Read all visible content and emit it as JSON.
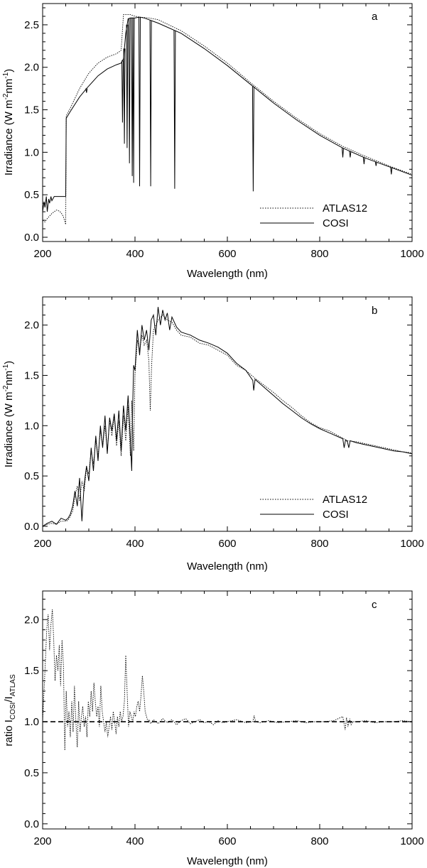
{
  "chart_data": [
    {
      "type": "line",
      "panel_letter": "a",
      "xlabel": "Wavelength (nm)",
      "ylabel": {
        "main": "Irradiance (W m",
        "sup1": "-2",
        "mid": "nm",
        "sup2": "-1",
        "tail": ")"
      },
      "xlim": [
        200,
        1000
      ],
      "ylim": [
        -0.05,
        2.75
      ],
      "xticks": [
        200,
        400,
        600,
        800,
        1000
      ],
      "yticks": [
        0.0,
        0.5,
        1.0,
        1.5,
        2.0,
        2.5
      ],
      "yticklabels": [
        "0.0",
        "0.5",
        "1.0",
        "1.5",
        "2.0",
        "2.5"
      ],
      "legend_position": "bottom-right",
      "series": [
        {
          "name": "ATLAS12",
          "style": "dotted",
          "x": [
            200,
            205,
            210,
            215,
            220,
            225,
            230,
            235,
            240,
            245,
            250,
            251,
            260,
            280,
            300,
            320,
            340,
            360,
            365,
            370,
            375,
            380,
            390,
            400,
            410,
            430,
            450,
            500,
            550,
            600,
            650,
            700,
            750,
            800,
            850,
            900,
            950,
            1000
          ],
          "y": [
            0.2,
            0.18,
            0.22,
            0.25,
            0.28,
            0.3,
            0.32,
            0.31,
            0.29,
            0.24,
            0.15,
            1.43,
            1.52,
            1.75,
            1.93,
            2.05,
            2.12,
            2.16,
            2.18,
            2.2,
            2.62,
            2.62,
            2.62,
            2.6,
            2.59,
            2.58,
            2.56,
            2.43,
            2.25,
            2.05,
            1.82,
            1.6,
            1.4,
            1.22,
            1.07,
            0.95,
            0.84,
            0.74
          ]
        },
        {
          "name": "COSI",
          "style": "solid",
          "x": [
            200,
            203,
            205,
            208,
            210,
            213,
            215,
            218,
            220,
            225,
            230,
            240,
            249,
            250,
            251,
            260,
            280,
            295,
            300,
            320,
            340,
            360,
            370,
            375,
            380,
            385,
            390,
            395,
            400,
            410,
            420,
            430,
            440,
            450,
            500,
            550,
            600,
            650,
            700,
            750,
            800,
            850,
            900,
            950,
            1000
          ],
          "y": [
            0.3,
            0.42,
            0.35,
            0.48,
            0.3,
            0.45,
            0.4,
            0.48,
            0.43,
            0.48,
            0.48,
            0.48,
            0.48,
            0.48,
            1.4,
            1.48,
            1.65,
            1.75,
            1.78,
            1.9,
            1.98,
            2.03,
            2.05,
            2.1,
            2.4,
            2.57,
            2.58,
            2.58,
            2.58,
            2.59,
            2.58,
            2.56,
            2.54,
            2.52,
            2.4,
            2.22,
            2.02,
            1.8,
            1.58,
            1.38,
            1.2,
            1.05,
            0.93,
            0.83,
            0.73
          ]
        }
      ],
      "absorption_lines": [
        {
          "x": 295,
          "y": 1.7
        },
        {
          "x": 373,
          "y": 1.35
        },
        {
          "x": 377,
          "y": 1.1
        },
        {
          "x": 383,
          "y": 1.05
        },
        {
          "x": 388,
          "y": 0.87
        },
        {
          "x": 394,
          "y": 0.72
        },
        {
          "x": 397,
          "y": 0.64
        },
        {
          "x": 410,
          "y": 0.6
        },
        {
          "x": 434,
          "y": 0.6
        },
        {
          "x": 486,
          "y": 0.57
        },
        {
          "x": 656,
          "y": 0.54
        },
        {
          "x": 850,
          "y": 0.94
        },
        {
          "x": 866,
          "y": 0.94
        },
        {
          "x": 896,
          "y": 0.86
        },
        {
          "x": 922,
          "y": 0.84
        },
        {
          "x": 955,
          "y": 0.74
        }
      ]
    },
    {
      "type": "line",
      "panel_letter": "b",
      "xlabel": "Wavelength (nm)",
      "ylabel": {
        "main": "Irradiance (W m",
        "sup1": "-2",
        "mid": "nm",
        "sup2": "-1",
        "tail": ")"
      },
      "xlim": [
        200,
        1000
      ],
      "ylim": [
        -0.05,
        2.28
      ],
      "xticks": [
        200,
        400,
        600,
        800,
        1000
      ],
      "yticks": [
        0.0,
        0.5,
        1.0,
        1.5,
        2.0
      ],
      "yticklabels": [
        "0.0",
        "0.5",
        "1.0",
        "1.5",
        "2.0"
      ],
      "legend_position": "bottom-right",
      "series": [
        {
          "name": "ATLAS12",
          "style": "dotted",
          "x": [
            200,
            210,
            220,
            230,
            240,
            250,
            255,
            260,
            265,
            270,
            275,
            280,
            285,
            290,
            295,
            300,
            305,
            310,
            315,
            320,
            325,
            330,
            335,
            340,
            345,
            350,
            355,
            360,
            365,
            370,
            375,
            380,
            385,
            390,
            393,
            397,
            400,
            405,
            410,
            415,
            420,
            425,
            430,
            433,
            436,
            440,
            445,
            450,
            460,
            470,
            480,
            490,
            500,
            520,
            540,
            560,
            580,
            600,
            620,
            640,
            660,
            680,
            700,
            720,
            740,
            760,
            780,
            800,
            820,
            840,
            860,
            880,
            900,
            920,
            940,
            960,
            980,
            1000
          ],
          "y": [
            0.0,
            0.02,
            0.03,
            0.02,
            0.05,
            0.05,
            0.06,
            0.1,
            0.15,
            0.3,
            0.4,
            0.25,
            0.45,
            0.35,
            0.58,
            0.52,
            0.75,
            0.62,
            0.85,
            0.7,
            0.95,
            0.8,
            1.0,
            0.75,
            1.05,
            0.9,
            1.1,
            0.8,
            1.05,
            0.7,
            1.1,
            0.85,
            1.2,
            0.7,
            1.25,
            0.75,
            1.5,
            1.85,
            1.75,
            1.9,
            1.8,
            1.85,
            1.65,
            1.15,
            1.6,
            1.95,
            2.0,
            2.05,
            2.1,
            2.05,
            2.03,
            1.95,
            1.9,
            1.88,
            1.82,
            1.8,
            1.75,
            1.7,
            1.6,
            1.55,
            1.47,
            1.4,
            1.33,
            1.25,
            1.18,
            1.1,
            1.03,
            0.98,
            0.95,
            0.9,
            0.85,
            0.84,
            0.82,
            0.8,
            0.78,
            0.76,
            0.74,
            0.73
          ]
        },
        {
          "name": "COSI",
          "style": "solid",
          "x": [
            200,
            210,
            220,
            230,
            240,
            250,
            255,
            260,
            265,
            270,
            275,
            280,
            285,
            290,
            295,
            300,
            305,
            310,
            315,
            320,
            325,
            330,
            335,
            340,
            345,
            350,
            355,
            360,
            365,
            370,
            375,
            380,
            385,
            390,
            393,
            395,
            397,
            400,
            405,
            410,
            415,
            420,
            425,
            430,
            435,
            440,
            445,
            450,
            455,
            460,
            465,
            470,
            475,
            480,
            490,
            500,
            520,
            540,
            560,
            580,
            600,
            620,
            640,
            655,
            657,
            660,
            680,
            700,
            720,
            740,
            760,
            780,
            800,
            820,
            840,
            850,
            853,
            856,
            860,
            863,
            866,
            880,
            900,
            920,
            940,
            960,
            980,
            1000
          ],
          "y": [
            0.0,
            0.03,
            0.05,
            0.02,
            0.08,
            0.06,
            0.08,
            0.12,
            0.2,
            0.35,
            0.2,
            0.48,
            0.05,
            0.42,
            0.6,
            0.45,
            0.78,
            0.55,
            0.9,
            0.65,
            1.0,
            0.78,
            1.1,
            0.72,
            1.08,
            0.95,
            1.12,
            0.85,
            1.15,
            0.75,
            1.2,
            0.95,
            1.3,
            0.85,
            0.55,
            1.2,
            1.6,
            1.55,
            1.95,
            1.7,
            2.0,
            1.85,
            1.95,
            1.75,
            2.05,
            2.1,
            1.9,
            2.18,
            2.0,
            2.15,
            2.05,
            2.12,
            1.95,
            2.08,
            1.98,
            1.93,
            1.9,
            1.85,
            1.82,
            1.78,
            1.72,
            1.62,
            1.55,
            1.45,
            1.35,
            1.46,
            1.38,
            1.3,
            1.22,
            1.15,
            1.08,
            1.02,
            0.97,
            0.93,
            0.89,
            0.87,
            0.78,
            0.86,
            0.84,
            0.78,
            0.85,
            0.83,
            0.81,
            0.79,
            0.77,
            0.75,
            0.74,
            0.72
          ]
        }
      ]
    },
    {
      "type": "line",
      "panel_letter": "c",
      "xlabel": "Wavelength (nm)",
      "ylabel": {
        "main": "ratio I",
        "sub1": "COSI",
        "mid": "/I",
        "sub2": "ATLAS"
      },
      "xlim": [
        200,
        1000
      ],
      "ylim": [
        -0.05,
        2.28
      ],
      "xticks": [
        200,
        400,
        600,
        800,
        1000
      ],
      "yticks": [
        0.0,
        0.5,
        1.0,
        1.5,
        2.0
      ],
      "yticklabels": [
        "0.0",
        "0.5",
        "1.0",
        "1.5",
        "2.0"
      ],
      "series": [
        {
          "name": "",
          "style": "dotted",
          "x": [
            200,
            203,
            206,
            209,
            212,
            215,
            218,
            221,
            224,
            227,
            230,
            233,
            236,
            239,
            242,
            245,
            248,
            251,
            254,
            257,
            260,
            263,
            266,
            269,
            272,
            275,
            278,
            281,
            284,
            287,
            290,
            293,
            296,
            299,
            302,
            305,
            308,
            311,
            314,
            317,
            320,
            323,
            326,
            329,
            332,
            335,
            338,
            341,
            344,
            347,
            350,
            353,
            356,
            359,
            362,
            365,
            368,
            371,
            374,
            377,
            380,
            383,
            386,
            389,
            392,
            395,
            398,
            401,
            404,
            407,
            410,
            413,
            416,
            419,
            422,
            425,
            428,
            431,
            434,
            437,
            440,
            445,
            450,
            460,
            470,
            480,
            490,
            500,
            510,
            520,
            530,
            540,
            550,
            560,
            570,
            580,
            590,
            600,
            620,
            640,
            655,
            658,
            661,
            670,
            690,
            710,
            730,
            750,
            770,
            790,
            810,
            830,
            850,
            855,
            858,
            861,
            865,
            868,
            872,
            880,
            900,
            920,
            940,
            960,
            980,
            1000
          ],
          "y": [
            1.0,
            1.3,
            1.6,
            1.9,
            2.05,
            1.7,
            1.95,
            2.1,
            1.8,
            1.4,
            1.65,
            1.5,
            1.75,
            1.35,
            1.8,
            1.55,
            0.72,
            1.3,
            0.95,
            1.1,
            0.85,
            1.2,
            0.9,
            1.35,
            1.0,
            0.75,
            1.2,
            0.9,
            1.05,
            1.15,
            0.95,
            1.05,
            0.85,
            1.2,
            1.05,
            1.3,
            1.1,
            1.38,
            1.2,
            1.05,
            1.15,
            0.95,
            1.35,
            1.1,
            1.0,
            0.9,
            1.0,
            0.85,
            0.95,
            1.05,
            0.92,
            1.1,
            1.0,
            0.88,
            1.05,
            0.95,
            1.1,
            1.0,
            1.05,
            1.2,
            1.65,
            1.3,
            0.95,
            1.1,
            1.05,
            1.0,
            1.1,
            1.05,
            1.15,
            1.2,
            1.1,
            1.25,
            1.45,
            1.3,
            1.1,
            1.05,
            1.0,
            1.02,
            0.98,
            1.0,
            1.02,
            1.0,
            0.98,
            1.03,
            0.99,
            1.02,
            0.97,
            1.01,
            1.03,
            0.98,
            1.0,
            1.02,
            0.99,
            1.0,
            0.97,
            1.01,
            0.99,
            1.0,
            1.02,
            0.99,
            1.0,
            1.06,
            1.0,
            0.99,
            1.01,
            0.99,
            1.0,
            1.01,
            0.99,
            1.0,
            1.0,
            1.01,
            1.05,
            0.92,
            1.04,
            0.95,
            1.03,
            0.97,
            1.0,
            1.0,
            1.01,
            0.99,
            1.0,
            1.0,
            1.01,
            1.0
          ],
          "reference_line": 1.0
        }
      ]
    }
  ]
}
